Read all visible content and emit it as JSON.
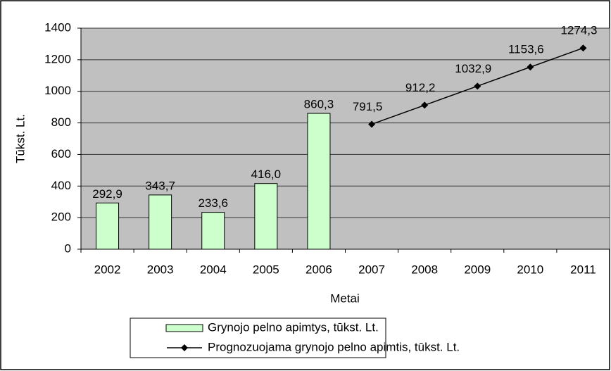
{
  "chart_data": {
    "type": "bar",
    "xlabel": "Metai",
    "ylabel": "Tūkst. Lt.",
    "categories": [
      "2002",
      "2003",
      "2004",
      "2005",
      "2006",
      "2007",
      "2008",
      "2009",
      "2010",
      "2011"
    ],
    "series": [
      {
        "name": "Grynojo pelno apimtys, tūkst. Lt.",
        "type": "bar",
        "color": "#ccffcc",
        "values": [
          292.9,
          343.7,
          233.6,
          416.0,
          860.3,
          null,
          null,
          null,
          null,
          null
        ],
        "value_labels": [
          "292,9",
          "343,7",
          "233,6",
          "416,0",
          "860,3",
          null,
          null,
          null,
          null,
          null
        ]
      },
      {
        "name": "Prognozuojama grynojo pelno apimtis, tūkst. Lt.",
        "type": "line",
        "color": "#000000",
        "values": [
          null,
          null,
          null,
          null,
          null,
          791.5,
          912.2,
          1032.9,
          1153.6,
          1274.3
        ],
        "value_labels": [
          null,
          null,
          null,
          null,
          null,
          "791,5",
          "912,2",
          "1032,9",
          "1153,6",
          "1274,3"
        ]
      }
    ],
    "ylim": [
      0,
      1400
    ],
    "yticks": [
      0,
      200,
      400,
      600,
      800,
      1000,
      1200,
      1400
    ],
    "grid": true,
    "legend": "bottom"
  }
}
